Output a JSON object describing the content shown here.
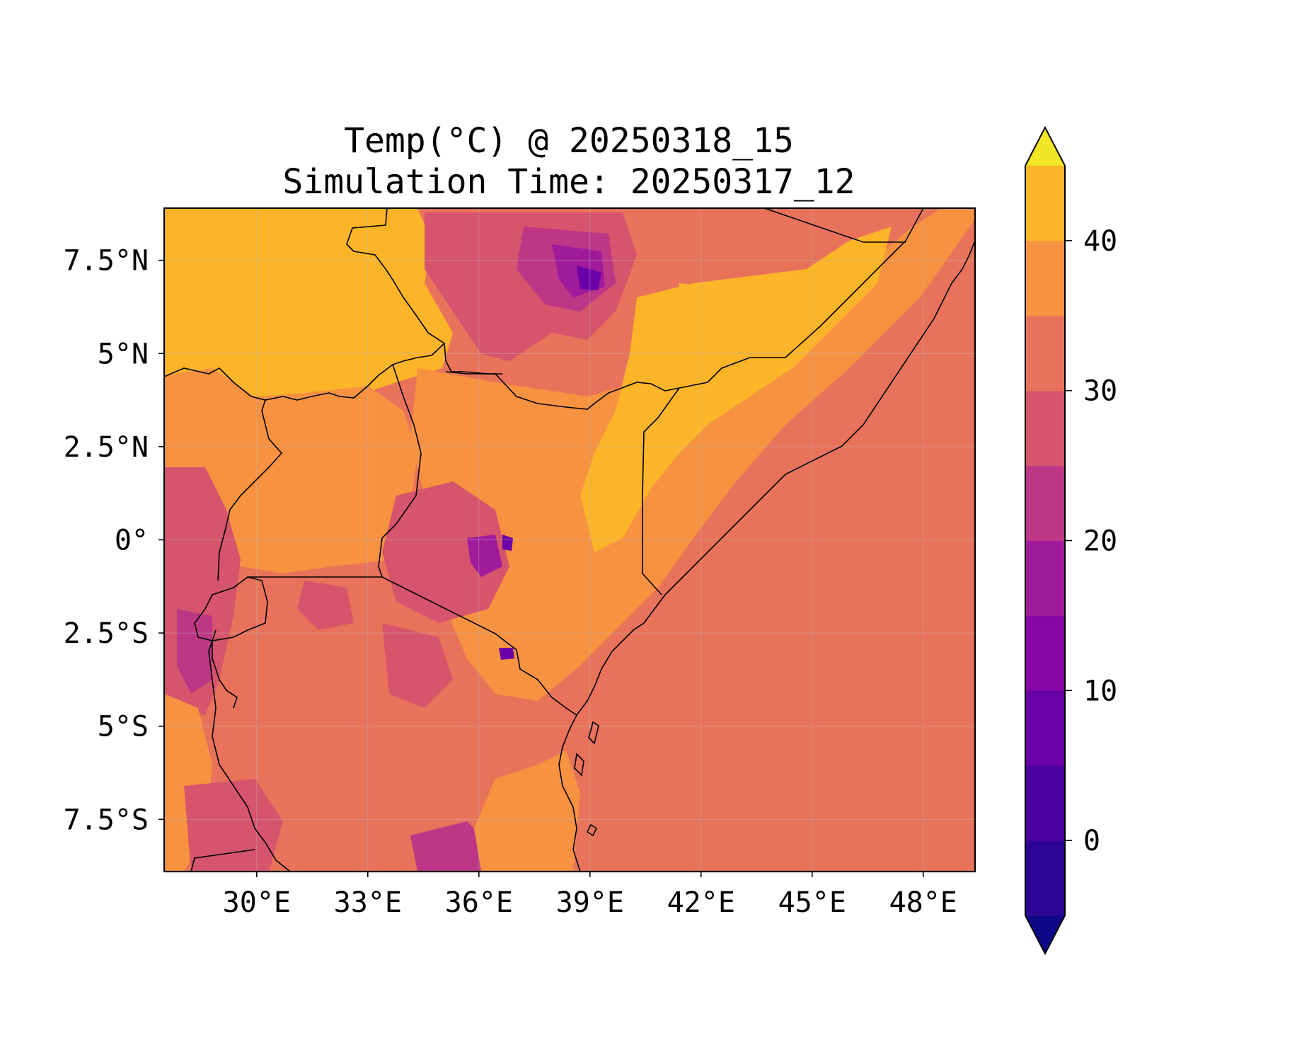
{
  "title": {
    "line1": "Temp(°C) @ 20250318_15",
    "line2": "Simulation Time: 20250317_12"
  },
  "map": {
    "region": "East Africa",
    "extent": {
      "lon": [
        27.5,
        49.4
      ],
      "lat": [
        -8.9,
        8.9
      ]
    },
    "x_ticks": [
      {
        "value": 30,
        "label": "30°E"
      },
      {
        "value": 33,
        "label": "33°E"
      },
      {
        "value": 36,
        "label": "36°E"
      },
      {
        "value": 39,
        "label": "39°E"
      },
      {
        "value": 42,
        "label": "42°E"
      },
      {
        "value": 45,
        "label": "45°E"
      },
      {
        "value": 48,
        "label": "48°E"
      }
    ],
    "y_ticks": [
      {
        "value": 7.5,
        "label": "7.5°N"
      },
      {
        "value": 5,
        "label": "5°N"
      },
      {
        "value": 2.5,
        "label": "2.5°N"
      },
      {
        "value": 0,
        "label": "0°"
      },
      {
        "value": -2.5,
        "label": "2.5°S"
      },
      {
        "value": -5,
        "label": "5°S"
      },
      {
        "value": -7.5,
        "label": "7.5°S"
      }
    ],
    "ocean_color": "#e8735a",
    "gridlines": true
  },
  "colorbar": {
    "colormap": "plasma",
    "extend": "both",
    "levels": [
      -5,
      0,
      5,
      10,
      15,
      20,
      25,
      30,
      35,
      40,
      45
    ],
    "colors": [
      "#0d0887",
      "#2c0594",
      "#4c02a1",
      "#6a00a8",
      "#8606a6",
      "#a01a9c",
      "#bd3786",
      "#d6546c",
      "#e8735a",
      "#f79240",
      "#fcb428",
      "#f2e726"
    ],
    "ticks": [
      {
        "value": 0,
        "label": "0"
      },
      {
        "value": 10,
        "label": "10"
      },
      {
        "value": 20,
        "label": "20"
      },
      {
        "value": 30,
        "label": "30"
      },
      {
        "value": 40,
        "label": "40"
      }
    ]
  }
}
